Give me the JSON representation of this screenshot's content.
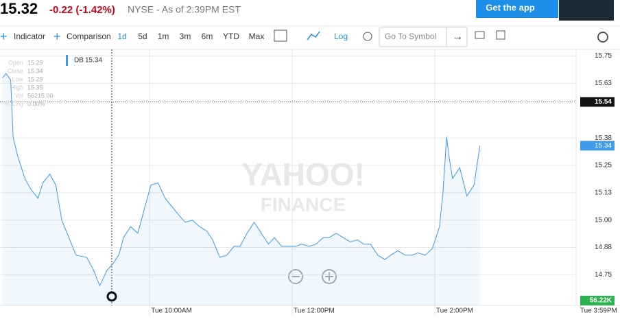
{
  "header": {
    "price": "15.32",
    "change": "-0.22 (-1.42%)",
    "status": "NYSE - As of 2:39PM EST",
    "app_button": "Get the app"
  },
  "toolbar": {
    "indicator": "Indicator",
    "comparison": "Comparison",
    "ranges": [
      "1d",
      "5d",
      "1m",
      "3m",
      "6m",
      "YTD",
      "Max"
    ],
    "log": "Log",
    "symbol_placeholder": "Go To Symbol"
  },
  "chart_data": {
    "type": "line",
    "watermark": [
      "YAHOO!",
      "FINANCE"
    ],
    "tooltip": [
      {
        "label": "Open",
        "value": "15.29"
      },
      {
        "label": "Close",
        "value": "15.34"
      },
      {
        "label": "Low",
        "value": "15.29"
      },
      {
        "label": "High",
        "value": "15.35"
      },
      {
        "label": "Vol",
        "value": "56215.00"
      },
      {
        "label": "% Chg",
        "value": "0.00%"
      }
    ],
    "x": [
      476,
      479,
      483,
      485,
      489,
      495,
      500,
      506,
      510,
      516,
      521,
      526,
      532,
      538,
      547,
      552,
      558,
      564,
      569,
      574,
      578,
      584,
      590,
      596,
      601,
      607,
      613,
      619,
      625,
      630,
      636,
      642,
      648,
      653,
      659,
      665,
      671,
      676,
      682,
      688,
      694,
      700,
      705,
      711,
      717,
      723,
      728,
      734,
      740,
      746,
      751,
      757,
      763,
      769,
      775,
      780,
      786,
      792,
      798,
      803,
      809,
      815,
      821,
      826,
      832,
      838,
      844,
      847,
      850,
      852,
      855,
      861,
      867,
      873,
      878
    ],
    "series": [
      {
        "name": "DB",
        "color": "#3d9be9",
        "values": [
          15.65,
          15.67,
          15.64,
          15.38,
          15.29,
          15.19,
          15.14,
          15.1,
          15.17,
          15.21,
          15.16,
          15.0,
          14.92,
          14.84,
          14.83,
          14.78,
          14.7,
          14.77,
          14.8,
          14.84,
          14.92,
          14.97,
          14.94,
          15.06,
          15.16,
          15.17,
          15.1,
          15.06,
          15.02,
          14.99,
          15.0,
          14.97,
          14.95,
          14.91,
          14.83,
          14.84,
          14.88,
          14.88,
          14.94,
          14.99,
          14.94,
          14.89,
          14.92,
          14.88,
          14.88,
          14.88,
          14.89,
          14.88,
          14.89,
          14.92,
          14.92,
          14.94,
          14.92,
          14.9,
          14.91,
          14.89,
          14.89,
          14.84,
          14.82,
          14.84,
          14.86,
          14.84,
          14.84,
          14.85,
          14.84,
          14.87,
          14.97,
          15.13,
          15.38,
          15.29,
          15.19,
          15.24,
          15.11,
          15.16,
          15.34
        ]
      }
    ],
    "prev_close": 15.54,
    "volume_label": "56.22K",
    "xlim": [
      474,
      959
    ],
    "xticks": [
      {
        "value": 600,
        "label": "Tue 10:00AM"
      },
      {
        "value": 720,
        "label": "Tue 12:00PM"
      },
      {
        "value": 840,
        "label": "Tue 2:00PM"
      },
      {
        "value": 959,
        "label": "Tue 3:59PM"
      }
    ],
    "ylim": [
      14.61,
      15.78
    ],
    "yticks": [
      14.75,
      {
        "value": 14.875,
        "label": "14.88"
      },
      {
        "value": 15,
        "label": "15.00"
      },
      {
        "value": 15.125,
        "label": "15.13"
      },
      15.25,
      {
        "value": 15.375,
        "label": "15.38"
      },
      {
        "value": 15.625,
        "label": "15.63"
      },
      15.75
    ],
    "grid": true
  }
}
